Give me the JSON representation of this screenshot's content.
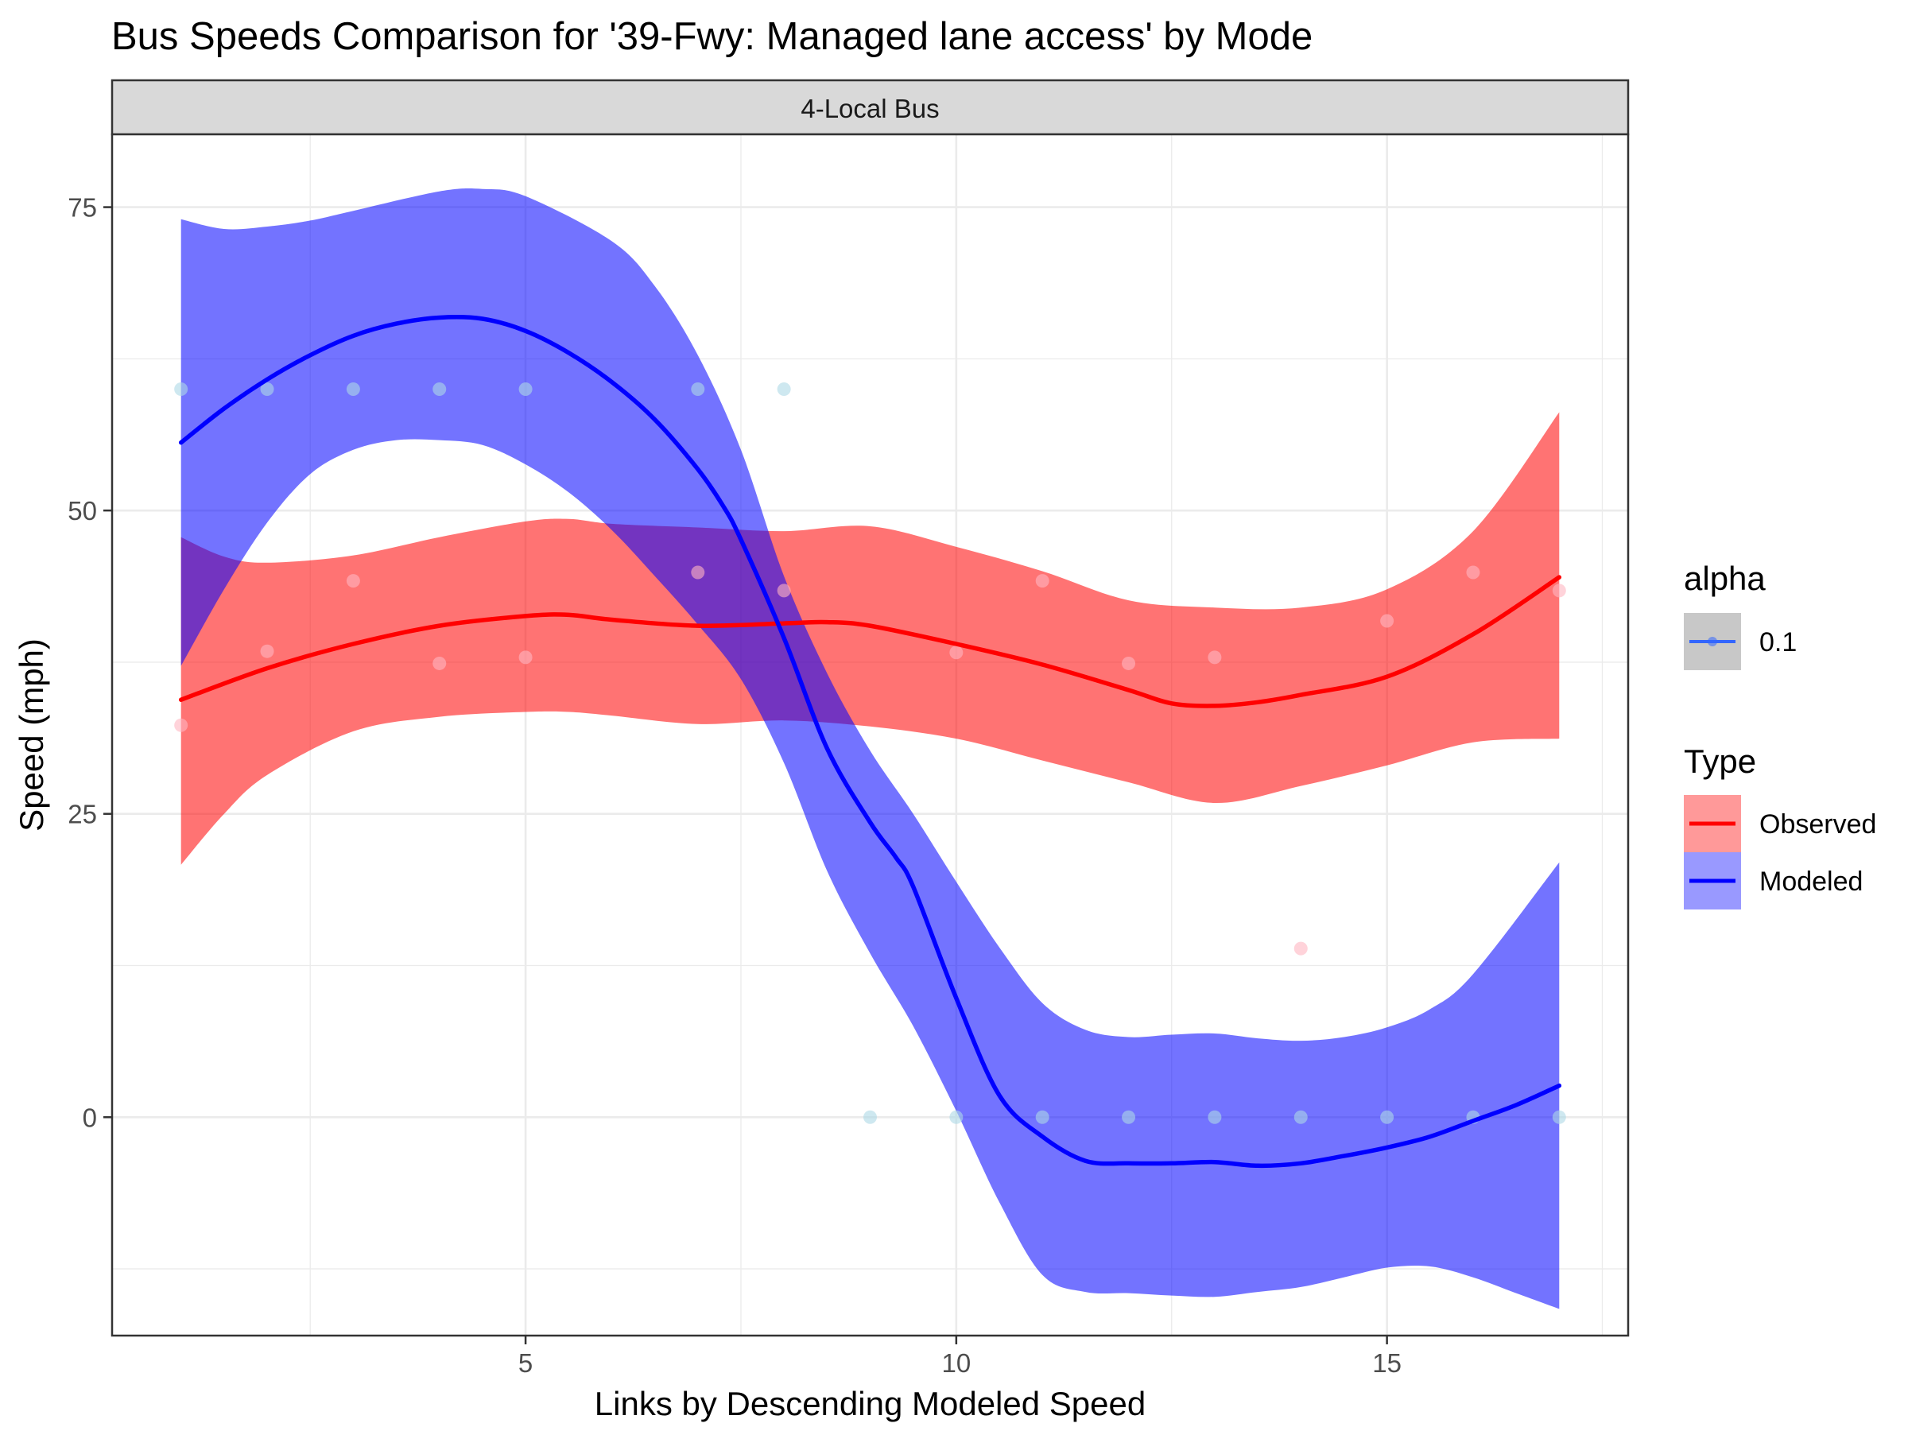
{
  "chart_data": {
    "type": "line",
    "title": "Bus Speeds Comparison for '39-Fwy: Managed lane access' by Mode",
    "facet_label": "4-Local Bus",
    "xlabel": "Links by Descending Modeled Speed",
    "ylabel": "Speed (mph)",
    "xlim": [
      0.2,
      17.8
    ],
    "ylim": [
      -18,
      81
    ],
    "x_ticks": [
      5,
      10,
      15
    ],
    "y_ticks": [
      0,
      25,
      50,
      75
    ],
    "grid": true,
    "legend_position": "right",
    "legends": [
      {
        "title": "alpha",
        "entries": [
          {
            "label": "0.1",
            "color": "#3366ff"
          }
        ]
      },
      {
        "title": "Type",
        "entries": [
          {
            "label": "Observed",
            "color": "#ff0000"
          },
          {
            "label": "Modeled",
            "color": "#0000ff"
          }
        ]
      }
    ],
    "series": [
      {
        "name": "Observed",
        "color": "#ff0000",
        "point_color": "#ffb6c1",
        "points": [
          [
            1,
            32.3
          ],
          [
            2,
            38.4
          ],
          [
            3,
            44.2
          ],
          [
            4,
            37.4
          ],
          [
            5,
            37.9
          ],
          [
            7,
            44.9
          ],
          [
            8,
            43.4
          ],
          [
            10,
            38.3
          ],
          [
            11,
            44.2
          ],
          [
            12,
            37.4
          ],
          [
            13,
            37.9
          ],
          [
            14,
            13.9
          ],
          [
            15,
            40.9
          ],
          [
            16,
            44.9
          ],
          [
            17,
            43.4
          ]
        ],
        "fit": [
          [
            1,
            34.4
          ],
          [
            2,
            37
          ],
          [
            3,
            39
          ],
          [
            4,
            40.5
          ],
          [
            5,
            41.3
          ],
          [
            5.5,
            41.4
          ],
          [
            6,
            41
          ],
          [
            7,
            40.5
          ],
          [
            8,
            40.7
          ],
          [
            8.5,
            40.8
          ],
          [
            9,
            40.5
          ],
          [
            10,
            39
          ],
          [
            11,
            37.3
          ],
          [
            12,
            35.2
          ],
          [
            12.5,
            34.1
          ],
          [
            13,
            33.9
          ],
          [
            13.5,
            34.2
          ],
          [
            14,
            34.8
          ],
          [
            15,
            36.3
          ],
          [
            16,
            39.8
          ],
          [
            17,
            44.5
          ]
        ],
        "ci_upper": [
          [
            1,
            47.8
          ],
          [
            1.5,
            46.2
          ],
          [
            2,
            45.7
          ],
          [
            3,
            46.3
          ],
          [
            4,
            47.8
          ],
          [
            5,
            49.1
          ],
          [
            5.5,
            49.3
          ],
          [
            6,
            48.9
          ],
          [
            7,
            48.6
          ],
          [
            8,
            48.3
          ],
          [
            9,
            48.7
          ],
          [
            10,
            47
          ],
          [
            11,
            45
          ],
          [
            12,
            42.6
          ],
          [
            13,
            42
          ],
          [
            14,
            42
          ],
          [
            15,
            43.5
          ],
          [
            16,
            48.3
          ],
          [
            17,
            58.1
          ]
        ],
        "ci_lower": [
          [
            1,
            20.8
          ],
          [
            1.5,
            25
          ],
          [
            2,
            28.2
          ],
          [
            3,
            31.8
          ],
          [
            4,
            33
          ],
          [
            5,
            33.4
          ],
          [
            5.5,
            33.4
          ],
          [
            6,
            33.1
          ],
          [
            7,
            32.4
          ],
          [
            8,
            32.7
          ],
          [
            9,
            32.2
          ],
          [
            10,
            31.2
          ],
          [
            11,
            29.4
          ],
          [
            12,
            27.6
          ],
          [
            13,
            25.9
          ],
          [
            14,
            27.3
          ],
          [
            15,
            29
          ],
          [
            16,
            30.9
          ],
          [
            17,
            31.2
          ]
        ]
      },
      {
        "name": "Modeled",
        "color": "#0000ff",
        "point_color": "#add8e6",
        "points": [
          [
            1,
            60
          ],
          [
            2,
            60
          ],
          [
            3,
            60
          ],
          [
            4,
            60
          ],
          [
            5,
            60
          ],
          [
            7,
            60
          ],
          [
            8,
            60
          ],
          [
            9,
            0
          ],
          [
            10,
            0
          ],
          [
            11,
            0
          ],
          [
            12,
            0
          ],
          [
            13,
            0
          ],
          [
            14,
            0
          ],
          [
            15,
            0
          ],
          [
            16,
            0
          ],
          [
            17,
            0
          ]
        ],
        "fit": [
          [
            1,
            55.6
          ],
          [
            1.5,
            58.4
          ],
          [
            2,
            60.8
          ],
          [
            2.5,
            62.8
          ],
          [
            3,
            64.4
          ],
          [
            3.5,
            65.4
          ],
          [
            4,
            65.9
          ],
          [
            4.5,
            65.8
          ],
          [
            5,
            64.8
          ],
          [
            5.5,
            63
          ],
          [
            6,
            60.6
          ],
          [
            6.5,
            57.5
          ],
          [
            7,
            53.4
          ],
          [
            7.3,
            50.3
          ],
          [
            7.5,
            47.6
          ],
          [
            8,
            39.5
          ],
          [
            8.5,
            30.4
          ],
          [
            9,
            24.3
          ],
          [
            9.3,
            21.4
          ],
          [
            9.5,
            19
          ],
          [
            10,
            9.8
          ],
          [
            10.5,
            1.8
          ],
          [
            11,
            -1.6
          ],
          [
            11.5,
            -3.6
          ],
          [
            12,
            -3.8
          ],
          [
            12.5,
            -3.8
          ],
          [
            13,
            -3.7
          ],
          [
            13.5,
            -4
          ],
          [
            14,
            -3.8
          ],
          [
            14.5,
            -3.2
          ],
          [
            15,
            -2.5
          ],
          [
            15.5,
            -1.6
          ],
          [
            16,
            -0.3
          ],
          [
            16.5,
            1
          ],
          [
            17,
            2.6
          ]
        ],
        "ci_upper": [
          [
            1,
            74
          ],
          [
            1.5,
            73.2
          ],
          [
            2,
            73.4
          ],
          [
            2.5,
            73.9
          ],
          [
            3,
            74.7
          ],
          [
            4,
            76.3
          ],
          [
            4.5,
            76.5
          ],
          [
            5,
            75.9
          ],
          [
            6,
            72.2
          ],
          [
            6.5,
            68.5
          ],
          [
            7,
            62.8
          ],
          [
            7.5,
            55
          ],
          [
            8,
            44.6
          ],
          [
            8.5,
            36.6
          ],
          [
            9,
            30.2
          ],
          [
            9.5,
            25
          ],
          [
            10,
            19.4
          ],
          [
            10.5,
            14
          ],
          [
            11,
            9.4
          ],
          [
            11.5,
            7.2
          ],
          [
            12,
            6.6
          ],
          [
            12.5,
            6.8
          ],
          [
            13,
            6.9
          ],
          [
            13.5,
            6.5
          ],
          [
            14,
            6.3
          ],
          [
            14.5,
            6.6
          ],
          [
            15,
            7.4
          ],
          [
            15.5,
            8.9
          ],
          [
            16,
            11.8
          ],
          [
            17,
            21
          ]
        ],
        "ci_lower": [
          [
            1,
            37.2
          ],
          [
            1.5,
            43.5
          ],
          [
            2,
            49
          ],
          [
            2.5,
            53
          ],
          [
            3,
            55
          ],
          [
            3.5,
            55.8
          ],
          [
            4,
            55.8
          ],
          [
            4.5,
            55.4
          ],
          [
            5,
            53.8
          ],
          [
            5.5,
            51.5
          ],
          [
            6,
            48.4
          ],
          [
            6.5,
            44.6
          ],
          [
            7,
            40.6
          ],
          [
            7.5,
            36.1
          ],
          [
            8,
            29.2
          ],
          [
            8.5,
            20.3
          ],
          [
            9,
            13.5
          ],
          [
            9.5,
            7.5
          ],
          [
            10,
            0.5
          ],
          [
            10.5,
            -7
          ],
          [
            11,
            -13
          ],
          [
            11.5,
            -14.4
          ],
          [
            12,
            -14.5
          ],
          [
            12.5,
            -14.7
          ],
          [
            13,
            -14.8
          ],
          [
            13.5,
            -14.4
          ],
          [
            14,
            -14
          ],
          [
            14.5,
            -13.2
          ],
          [
            15,
            -12.4
          ],
          [
            15.5,
            -12.3
          ],
          [
            16,
            -13.2
          ],
          [
            16.5,
            -14.5
          ],
          [
            17,
            -15.8
          ]
        ]
      }
    ]
  }
}
